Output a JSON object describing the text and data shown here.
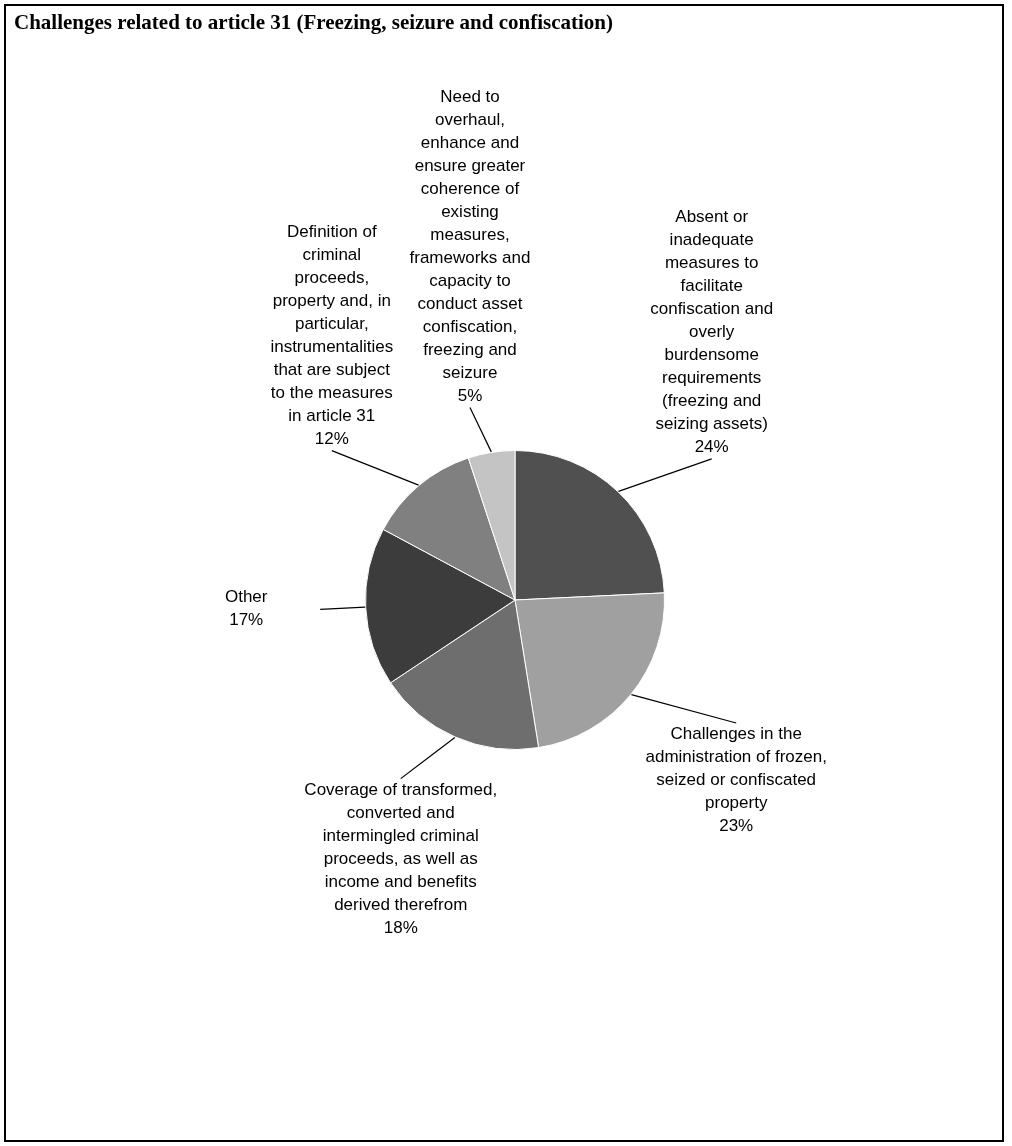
{
  "chart_data": {
    "type": "pie",
    "title": "Challenges related to article 31 (Freezing, seizure and confiscation)",
    "categories": [
      "Absent or inadequate measures to facilitate confiscation and overly burdensome requirements (freezing and seizing assets)",
      "Challenges in the administration of frozen, seized or confiscated property",
      "Coverage of transformed, converted and intermingled criminal proceeds, as well as income and benefits derived therefrom",
      "Other",
      "Definition of criminal proceeds, property and, in particular, instrumentalities that are subject to the measures in article 31",
      "Need to overhaul, enhance and ensure greater coherence of existing measures, frameworks and capacity to conduct asset confiscation, freezing and seizure"
    ],
    "values": [
      24,
      23,
      18,
      17,
      12,
      5
    ],
    "value_labels": [
      "24%",
      "23%",
      "18%",
      "17%",
      "12%",
      "5%"
    ],
    "colors": [
      "#505050",
      "#a0a0a0",
      "#6e6e6e",
      "#3c3c3c",
      "#808080",
      "#c4c4c4"
    ],
    "legend": false
  }
}
